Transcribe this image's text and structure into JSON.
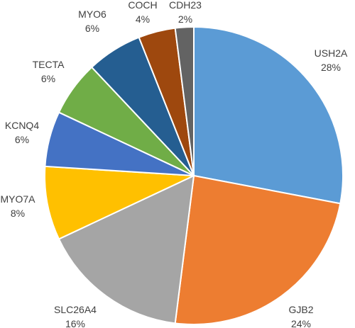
{
  "chart_data": {
    "type": "pie",
    "title": "",
    "start_angle_deg": 0,
    "direction": "clockwise",
    "slices": [
      {
        "label": "USH2A",
        "value": 28,
        "value_label": "28%",
        "color": "#5B9BD5"
      },
      {
        "label": "GJB2",
        "value": 24,
        "value_label": "24%",
        "color": "#ED7D31"
      },
      {
        "label": "SLC26A4",
        "value": 16,
        "value_label": "16%",
        "color": "#A5A5A5"
      },
      {
        "label": "MYO7A",
        "value": 8,
        "value_label": "8%",
        "color": "#FFC000"
      },
      {
        "label": "KCNQ4",
        "value": 6,
        "value_label": "6%",
        "color": "#4472C4"
      },
      {
        "label": "TECTA",
        "value": 6,
        "value_label": "6%",
        "color": "#70AD47"
      },
      {
        "label": "MYO6",
        "value": 6,
        "value_label": "6%",
        "color": "#255E91"
      },
      {
        "label": "COCH",
        "value": 4,
        "value_label": "4%",
        "color": "#9E480E"
      },
      {
        "label": "CDH23",
        "value": 2,
        "value_label": "2%",
        "color": "#636363"
      }
    ]
  }
}
